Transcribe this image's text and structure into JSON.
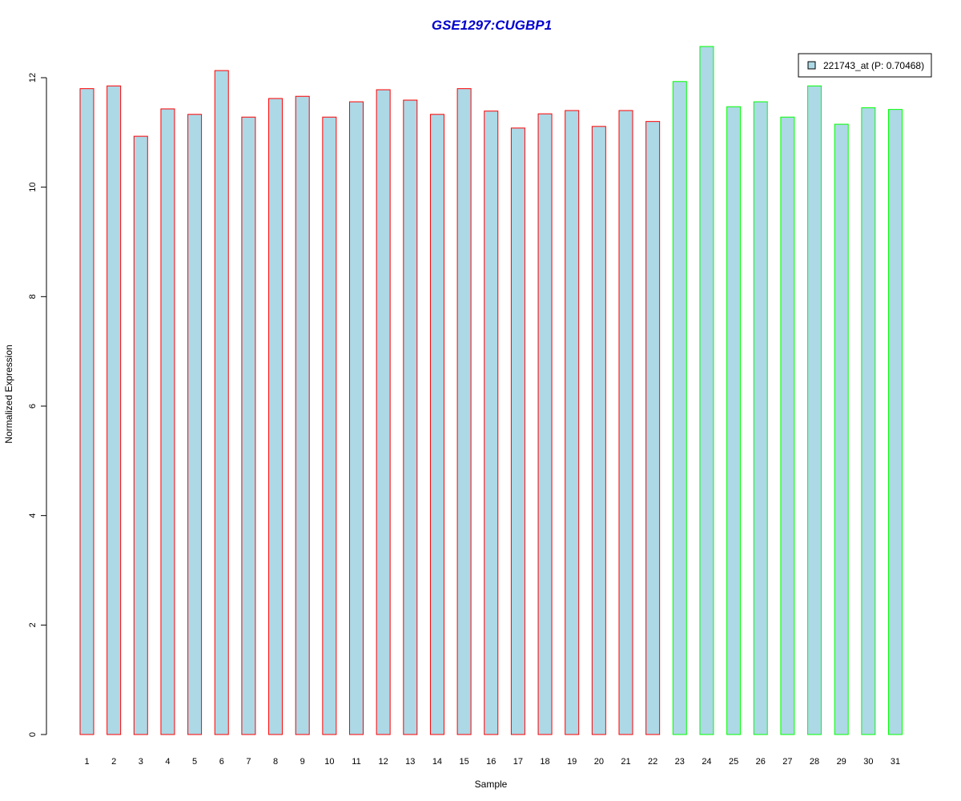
{
  "chart_data": {
    "type": "bar",
    "title": "GSE1297:CUGBP1",
    "xlabel": "Sample",
    "ylabel": "Normalized Expression",
    "ylim": [
      0,
      12.5
    ],
    "yticks": [
      0,
      2,
      4,
      6,
      8,
      10,
      12
    ],
    "grid": false,
    "legend_position": "top-right",
    "legend": [
      {
        "label": "221743_at (P: 0.70468)",
        "fill": "#add8e6"
      }
    ],
    "categories": [
      "1",
      "2",
      "3",
      "4",
      "5",
      "6",
      "7",
      "8",
      "9",
      "10",
      "11",
      "12",
      "13",
      "14",
      "15",
      "16",
      "17",
      "18",
      "19",
      "20",
      "21",
      "22",
      "23",
      "24",
      "25",
      "26",
      "27",
      "28",
      "29",
      "30",
      "31"
    ],
    "values": [
      11.8,
      11.85,
      10.93,
      11.43,
      11.33,
      12.13,
      11.28,
      11.62,
      11.66,
      11.28,
      11.56,
      11.78,
      11.59,
      11.33,
      11.8,
      11.39,
      11.08,
      11.34,
      11.4,
      11.11,
      11.4,
      11.2,
      11.93,
      12.57,
      11.47,
      11.56,
      11.28,
      11.85,
      11.15,
      11.45,
      11.42
    ],
    "bar_fill": "#add8e6",
    "bar_borders": [
      "#ff0000",
      "#ff0000",
      "#ff0000",
      "#ff0000",
      "#ff0000",
      "#ff0000",
      "#ff0000",
      "#ff0000",
      "#ff0000",
      "#ff0000",
      "#ff0000",
      "#ff0000",
      "#ff0000",
      "#ff0000",
      "#ff0000",
      "#ff0000",
      "#ff0000",
      "#ff0000",
      "#ff0000",
      "#ff0000",
      "#ff0000",
      "#ff0000",
      "#00ff00",
      "#00ff00",
      "#00ff00",
      "#00ff00",
      "#00ff00",
      "#00ff00",
      "#00ff00",
      "#00ff00",
      "#00ff00"
    ],
    "title_color": "#0000cd"
  }
}
